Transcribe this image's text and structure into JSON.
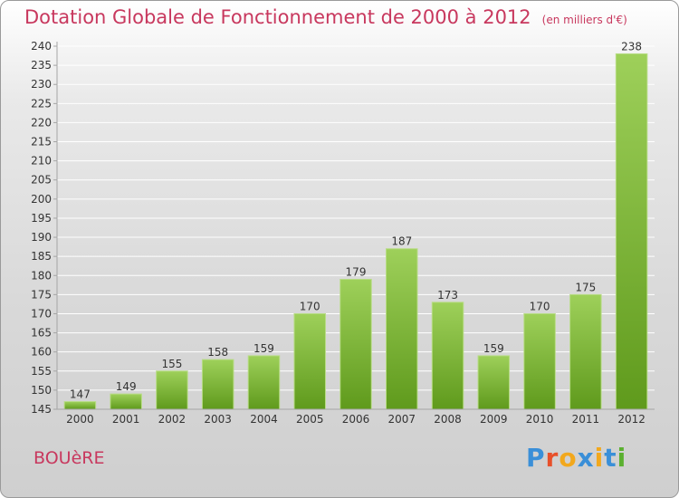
{
  "header": {
    "title": "Dotation Globale de Fonctionnement de 2000 à 2012",
    "unit": "(en milliers d'€)"
  },
  "commune": "BOUèRE",
  "brand": {
    "text": "Proxiti",
    "colors": [
      "#3a8fd8",
      "#e8502a",
      "#f2a81d",
      "#3a8fd8",
      "#f2a81d",
      "#3a8fd8",
      "#5bb030"
    ]
  },
  "colors": {
    "bar_top": "#9ed05a",
    "bar_bottom": "#5f9a1c",
    "axis": "#a5a5a5",
    "grid": "#ffffff",
    "accent": "#c8385e"
  },
  "chart_data": {
    "type": "bar",
    "categories": [
      "2000",
      "2001",
      "2002",
      "2003",
      "2004",
      "2005",
      "2006",
      "2007",
      "2008",
      "2009",
      "2010",
      "2011",
      "2012"
    ],
    "values": [
      147,
      149,
      155,
      158,
      159,
      170,
      179,
      187,
      173,
      159,
      170,
      175,
      238
    ],
    "ylim": [
      145,
      240
    ],
    "ytick_step": 5,
    "grid": true,
    "data_labels": true
  }
}
